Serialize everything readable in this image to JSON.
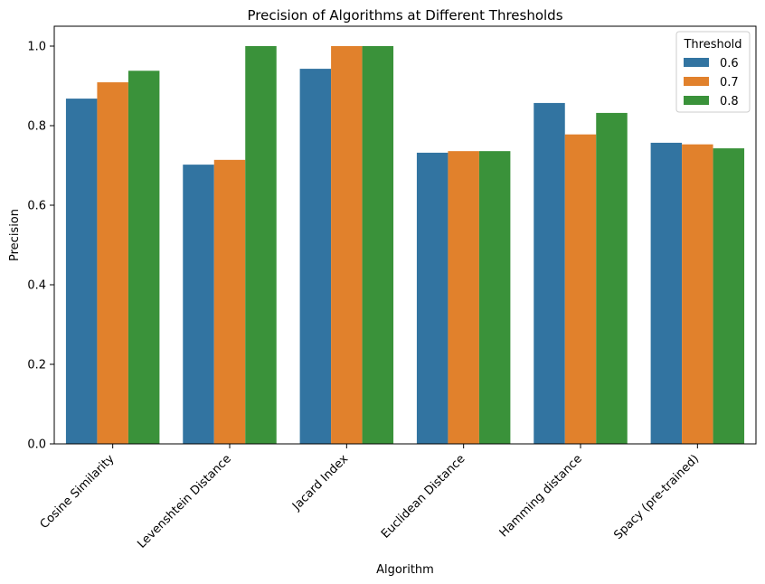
{
  "chart_data": {
    "type": "bar",
    "title": "Precision of Algorithms at Different Thresholds",
    "xlabel": "Algorithm",
    "ylabel": "Precision",
    "ylim": [
      0,
      1.05
    ],
    "yticks": [
      "0.0",
      "0.2",
      "0.4",
      "0.6",
      "0.8",
      "1.0"
    ],
    "categories": [
      "Cosine Similarity",
      "Levenshtein Distance",
      "Jacard Index",
      "Euclidean Distance",
      "Hamming distance",
      "Spacy (pre-trained)"
    ],
    "legend": {
      "title": "Threshold",
      "position": "top-right"
    },
    "grid": false,
    "series": [
      {
        "name": "0.6",
        "color": "#3274a1",
        "values": [
          0.868,
          0.702,
          0.943,
          0.732,
          0.857,
          0.757
        ]
      },
      {
        "name": "0.7",
        "color": "#e1812c",
        "values": [
          0.909,
          0.714,
          1.0,
          0.736,
          0.778,
          0.753
        ]
      },
      {
        "name": "0.8",
        "color": "#3a923a",
        "values": [
          0.938,
          1.0,
          1.0,
          0.736,
          0.832,
          0.743
        ]
      }
    ]
  }
}
